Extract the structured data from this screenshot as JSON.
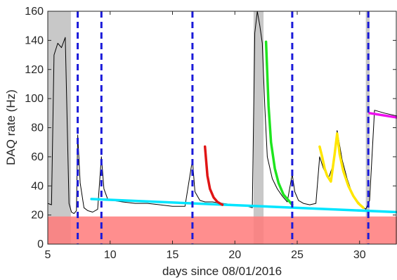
{
  "chart_data": {
    "type": "line",
    "title": "",
    "xlabel": "days since 08/01/2016",
    "ylabel": "DAQ rate (Hz)",
    "xlim": [
      5,
      33
    ],
    "ylim": [
      0,
      160
    ],
    "xticks": [
      5,
      10,
      15,
      20,
      25,
      30
    ],
    "yticks": [
      0,
      20,
      40,
      60,
      80,
      100,
      120,
      140,
      160
    ],
    "grid": false,
    "legend": "none",
    "background_color": "#ffffff",
    "shaded_regions": [
      {
        "x": [
          5,
          6.85
        ],
        "color": "#c8c8c8"
      },
      {
        "x": [
          21.5,
          22.3
        ],
        "color": "#c8c8c8"
      },
      {
        "x": [
          30.5,
          30.8
        ],
        "color": "#c8c8c8"
      }
    ],
    "threshold_band": {
      "y": [
        0,
        19
      ],
      "color": "#ff7a7a"
    },
    "vlines": [
      {
        "x": 7.4,
        "color": "#1a1ad9",
        "style": "dashed"
      },
      {
        "x": 9.3,
        "color": "#1a1ad9",
        "style": "dashed"
      },
      {
        "x": 16.6,
        "color": "#1a1ad9",
        "style": "dashed"
      },
      {
        "x": 24.6,
        "color": "#1a1ad9",
        "style": "dashed"
      },
      {
        "x": 30.7,
        "color": "#1a1ad9",
        "style": "dashed"
      }
    ],
    "series": [
      {
        "color": "#000000",
        "x": [
          5,
          5.3,
          5.5,
          5.8,
          6.1,
          6.4,
          6.7,
          6.9,
          7.1,
          7.3,
          7.4,
          7.6,
          7.9,
          8.2,
          8.6,
          9.0,
          9.3,
          9.5,
          9.8,
          10.2,
          11,
          12,
          13,
          14,
          15,
          16,
          16.6,
          16.8,
          17.2,
          17.6,
          18.2,
          19,
          20,
          21,
          21.4,
          21.6,
          21.8,
          22.0,
          22.2,
          22.4,
          22.6,
          23.0,
          23.4,
          23.8,
          24.2,
          24.6,
          24.8,
          25.1,
          25.5,
          26,
          26.5,
          26.8,
          27.1,
          27.5,
          27.9,
          28.2,
          28.6,
          29.0,
          29.4,
          29.8,
          30.2,
          30.5,
          30.8,
          31.2,
          32,
          33
        ],
        "y": [
          28,
          27,
          130,
          138,
          135,
          142,
          28,
          22,
          21,
          23,
          75,
          42,
          25,
          23,
          22,
          24,
          60,
          38,
          31,
          30,
          29,
          28,
          28,
          27,
          26,
          26,
          58,
          36,
          30,
          29,
          29,
          28,
          27,
          26,
          25,
          145,
          160,
          150,
          138,
          95,
          60,
          45,
          38,
          33,
          29,
          48,
          36,
          30,
          28,
          27,
          28,
          60,
          52,
          45,
          55,
          78,
          58,
          45,
          35,
          30,
          26,
          24,
          30,
          92,
          90,
          88
        ]
      },
      {
        "color": "#00e5ff",
        "x": [
          8.5,
          33
        ],
        "y": [
          31,
          22
        ]
      },
      {
        "color": "#e01515",
        "x": [
          17.6,
          17.8,
          18.0,
          18.3,
          18.6,
          19.0
        ],
        "y": [
          67,
          47,
          38,
          32,
          29,
          27
        ]
      },
      {
        "color": "#1ee51e",
        "x": [
          22.5,
          22.7,
          22.9,
          23.2,
          23.5,
          23.9,
          24.3,
          24.6
        ],
        "y": [
          139,
          95,
          70,
          52,
          42,
          34,
          30,
          27
        ]
      },
      {
        "color": "#ffe600",
        "x": [
          26.8,
          27.0,
          27.2,
          27.4,
          27.7,
          28.0,
          28.2,
          28.4,
          28.7,
          29.1,
          29.5,
          29.9,
          30.3
        ],
        "y": [
          67,
          60,
          52,
          47,
          43,
          62,
          76,
          62,
          50,
          40,
          33,
          28,
          25
        ]
      },
      {
        "color": "#ee10ee",
        "x": [
          30.8,
          33
        ],
        "y": [
          90,
          87
        ]
      }
    ]
  }
}
